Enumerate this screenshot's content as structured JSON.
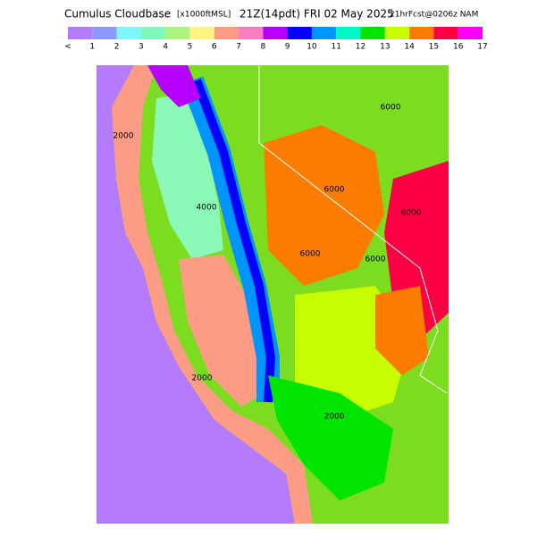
{
  "header": {
    "title": "Cumulus Cloudbase",
    "units": "[x1000ftMSL]",
    "valid_time": "21Z(14pdt) FRI 02 May 2025",
    "run": "21hrFcst@0206z NAM"
  },
  "colorbar": {
    "labels": [
      "<",
      "1",
      "2",
      "3",
      "4",
      "5",
      "6",
      "7",
      "8",
      "9",
      "10",
      "11",
      "12",
      "13",
      "14",
      "15",
      "16",
      "17"
    ],
    "colors": [
      "#b47cfc",
      "#8c98fc",
      "#7cf8fc",
      "#7cf8b8",
      "#acf47c",
      "#fcf47c",
      "#fc9c84",
      "#fc7cc4",
      "#b400fc",
      "#0000fc",
      "#0094fc",
      "#00f8c4",
      "#00e400",
      "#c8fc00",
      "#fc7c00",
      "#fc0044",
      "#fc00fc"
    ]
  },
  "map": {
    "contour_labels": [
      "6000",
      "2000",
      "4000",
      "6000",
      "6000",
      "2000",
      "2000",
      "6000",
      "6000"
    ]
  }
}
